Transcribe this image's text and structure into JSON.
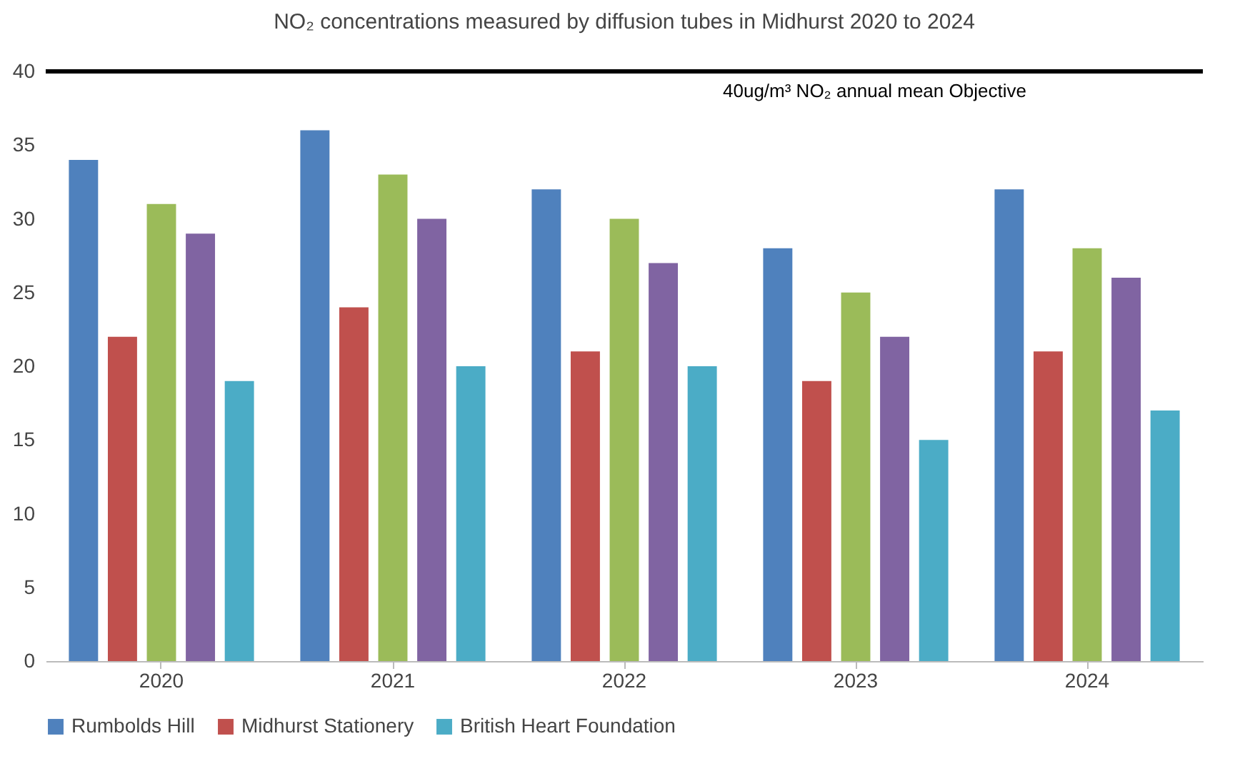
{
  "chart_data": {
    "type": "bar",
    "title": "NO₂ concentrations measured by diffusion tubes in Midhurst 2020 to 2024",
    "categories": [
      "2020",
      "2021",
      "2022",
      "2023",
      "2024"
    ],
    "series": [
      {
        "name": "Rumbolds Hill",
        "color": "#4f81bd",
        "values": [
          34,
          36,
          32,
          28,
          32
        ]
      },
      {
        "name": "Midhurst Stationery",
        "color": "#c0504d",
        "values": [
          22,
          24,
          21,
          19,
          21
        ]
      },
      {
        "color": "#9bbb59",
        "values": [
          31,
          33,
          30,
          25,
          28
        ]
      },
      {
        "color": "#8064a2",
        "values": [
          29,
          30,
          27,
          22,
          26
        ]
      },
      {
        "name": "British Heart Foundation",
        "color": "#4bacc6",
        "values": [
          19,
          20,
          20,
          15,
          17
        ]
      }
    ],
    "ylim": [
      0,
      40
    ],
    "yticks": [
      0,
      5,
      10,
      15,
      20,
      25,
      30,
      35,
      40
    ],
    "grid": false,
    "legend": "bottom",
    "ref_lines": [
      {
        "axis": "y",
        "value": 40,
        "label": "40ug/m³ NO₂ annual mean Objective",
        "color": "#000000"
      }
    ]
  }
}
